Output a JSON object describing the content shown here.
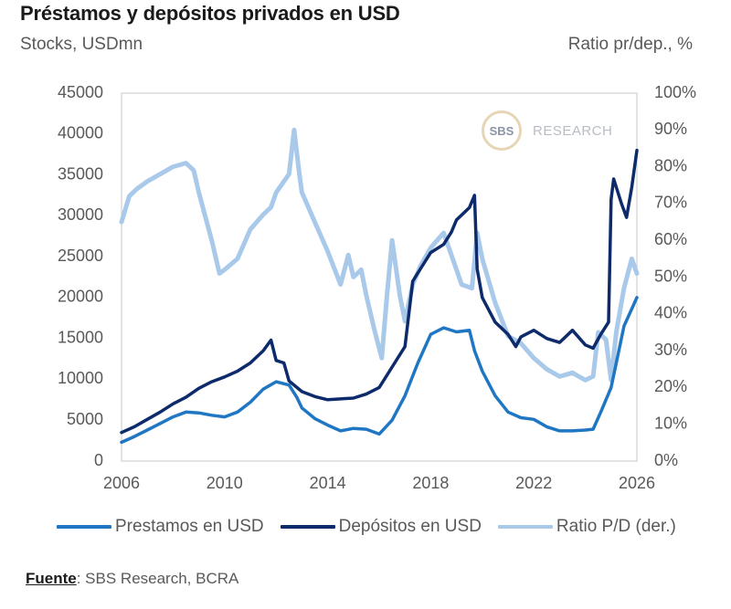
{
  "header": {
    "title": "Préstamos y depósitos privados en USD",
    "left_axis_caption": "Stocks, USDmn",
    "right_axis_caption": "Ratio pr/dep., %"
  },
  "watermark": {
    "mark": "SBS",
    "text": "RESEARCH"
  },
  "footer": {
    "source_label": "Fuente",
    "source_text": ": SBS Research, BCRA"
  },
  "legend": [
    {
      "label": "Prestamos en USD",
      "color": "#1f77c4"
    },
    {
      "label": "Depósitos en USD",
      "color": "#0d2a6b"
    },
    {
      "label": "Ratio P/D (der.)",
      "color": "#a9c9ea"
    }
  ],
  "chart_data": {
    "type": "line",
    "title": "Préstamos y depósitos privados en USD",
    "ylabel": "Stocks, USDmn",
    "y2label": "Ratio pr/dep., %",
    "xlim": [
      2006,
      2026
    ],
    "ylim": [
      0,
      45000
    ],
    "y2lim": [
      0,
      100
    ],
    "x_ticks": [
      "2006",
      "2010",
      "2014",
      "2018",
      "2022",
      "2026"
    ],
    "y_ticks": [
      "0",
      "5000",
      "10000",
      "15000",
      "20000",
      "25000",
      "30000",
      "35000",
      "40000",
      "45000"
    ],
    "y2_ticks": [
      "0%",
      "10%",
      "20%",
      "30%",
      "40%",
      "50%",
      "60%",
      "70%",
      "80%",
      "90%",
      "100%"
    ],
    "grid": false,
    "legend_position": "bottom",
    "series": [
      {
        "name": "Prestamos en USD",
        "axis": "left",
        "color": "#1f77c4",
        "points": [
          [
            2006.0,
            2300
          ],
          [
            2006.5,
            3000
          ],
          [
            2007.0,
            3800
          ],
          [
            2007.5,
            4600
          ],
          [
            2008.0,
            5400
          ],
          [
            2008.5,
            6000
          ],
          [
            2009.0,
            5900
          ],
          [
            2009.5,
            5600
          ],
          [
            2010.0,
            5400
          ],
          [
            2010.5,
            6000
          ],
          [
            2011.0,
            7200
          ],
          [
            2011.5,
            8800
          ],
          [
            2012.0,
            9700
          ],
          [
            2012.5,
            9300
          ],
          [
            2012.8,
            7800
          ],
          [
            2013.0,
            6500
          ],
          [
            2013.5,
            5200
          ],
          [
            2014.0,
            4400
          ],
          [
            2014.5,
            3700
          ],
          [
            2015.0,
            4000
          ],
          [
            2015.5,
            3900
          ],
          [
            2016.0,
            3300
          ],
          [
            2016.5,
            5000
          ],
          [
            2017.0,
            8000
          ],
          [
            2017.5,
            12000
          ],
          [
            2018.0,
            15500
          ],
          [
            2018.5,
            16300
          ],
          [
            2019.0,
            15800
          ],
          [
            2019.5,
            16000
          ],
          [
            2019.7,
            13500
          ],
          [
            2020.0,
            11000
          ],
          [
            2020.5,
            8000
          ],
          [
            2021.0,
            6000
          ],
          [
            2021.5,
            5300
          ],
          [
            2022.0,
            5100
          ],
          [
            2022.5,
            4200
          ],
          [
            2023.0,
            3700
          ],
          [
            2023.5,
            3700
          ],
          [
            2024.0,
            3800
          ],
          [
            2024.3,
            3900
          ],
          [
            2024.6,
            6000
          ],
          [
            2025.0,
            9000
          ],
          [
            2025.5,
            16500
          ],
          [
            2026.0,
            20000
          ]
        ]
      },
      {
        "name": "Depósitos en USD",
        "axis": "left",
        "color": "#0d2a6b",
        "points": [
          [
            2006.0,
            3500
          ],
          [
            2006.5,
            4200
          ],
          [
            2007.0,
            5100
          ],
          [
            2007.5,
            6000
          ],
          [
            2008.0,
            7000
          ],
          [
            2008.5,
            7800
          ],
          [
            2009.0,
            8900
          ],
          [
            2009.5,
            9700
          ],
          [
            2010.0,
            10300
          ],
          [
            2010.5,
            11000
          ],
          [
            2011.0,
            12000
          ],
          [
            2011.5,
            13500
          ],
          [
            2011.8,
            14800
          ],
          [
            2012.0,
            12300
          ],
          [
            2012.3,
            12000
          ],
          [
            2012.5,
            9800
          ],
          [
            2013.0,
            8500
          ],
          [
            2013.5,
            7900
          ],
          [
            2014.0,
            7500
          ],
          [
            2014.5,
            7600
          ],
          [
            2015.0,
            7700
          ],
          [
            2015.5,
            8200
          ],
          [
            2016.0,
            9000
          ],
          [
            2016.5,
            11500
          ],
          [
            2017.0,
            14000
          ],
          [
            2017.3,
            22000
          ],
          [
            2017.6,
            23500
          ],
          [
            2018.0,
            25500
          ],
          [
            2018.5,
            26500
          ],
          [
            2018.8,
            28000
          ],
          [
            2019.0,
            29500
          ],
          [
            2019.5,
            31000
          ],
          [
            2019.7,
            32500
          ],
          [
            2019.8,
            23500
          ],
          [
            2020.0,
            20000
          ],
          [
            2020.5,
            17000
          ],
          [
            2021.0,
            15500
          ],
          [
            2021.3,
            14000
          ],
          [
            2021.5,
            15200
          ],
          [
            2022.0,
            16000
          ],
          [
            2022.5,
            15000
          ],
          [
            2023.0,
            14500
          ],
          [
            2023.5,
            16000
          ],
          [
            2024.0,
            14200
          ],
          [
            2024.3,
            13800
          ],
          [
            2024.6,
            15500
          ],
          [
            2024.9,
            17000
          ],
          [
            2025.0,
            32000
          ],
          [
            2025.1,
            34500
          ],
          [
            2025.4,
            31500
          ],
          [
            2025.6,
            29800
          ],
          [
            2025.8,
            33500
          ],
          [
            2026.0,
            38000
          ]
        ]
      },
      {
        "name": "Ratio P/D (der.)",
        "axis": "right",
        "color": "#a9c9ea",
        "points": [
          [
            2006.0,
            65
          ],
          [
            2006.3,
            72
          ],
          [
            2006.6,
            74
          ],
          [
            2007.0,
            76
          ],
          [
            2007.5,
            78
          ],
          [
            2008.0,
            80
          ],
          [
            2008.5,
            81
          ],
          [
            2008.8,
            79
          ],
          [
            2009.0,
            73
          ],
          [
            2009.5,
            60
          ],
          [
            2009.8,
            51
          ],
          [
            2010.0,
            52
          ],
          [
            2010.5,
            55
          ],
          [
            2011.0,
            63
          ],
          [
            2011.5,
            67
          ],
          [
            2011.8,
            69
          ],
          [
            2012.0,
            73
          ],
          [
            2012.5,
            78
          ],
          [
            2012.7,
            90
          ],
          [
            2012.9,
            78
          ],
          [
            2013.0,
            73
          ],
          [
            2013.5,
            65
          ],
          [
            2014.0,
            57
          ],
          [
            2014.5,
            48
          ],
          [
            2014.8,
            56
          ],
          [
            2015.0,
            50
          ],
          [
            2015.3,
            52
          ],
          [
            2015.5,
            45
          ],
          [
            2015.8,
            36
          ],
          [
            2016.1,
            28
          ],
          [
            2016.3,
            45
          ],
          [
            2016.5,
            60
          ],
          [
            2016.8,
            45
          ],
          [
            2017.0,
            38
          ],
          [
            2017.3,
            48
          ],
          [
            2017.6,
            53
          ],
          [
            2018.0,
            58
          ],
          [
            2018.5,
            62
          ],
          [
            2018.8,
            56
          ],
          [
            2019.2,
            48
          ],
          [
            2019.6,
            47
          ],
          [
            2019.8,
            62
          ],
          [
            2020.0,
            55
          ],
          [
            2020.5,
            43
          ],
          [
            2021.0,
            34
          ],
          [
            2021.5,
            32
          ],
          [
            2022.0,
            28
          ],
          [
            2022.5,
            25
          ],
          [
            2023.0,
            23
          ],
          [
            2023.5,
            24
          ],
          [
            2024.0,
            22
          ],
          [
            2024.3,
            23
          ],
          [
            2024.5,
            35
          ],
          [
            2024.8,
            33
          ],
          [
            2025.0,
            22
          ],
          [
            2025.2,
            35
          ],
          [
            2025.5,
            47
          ],
          [
            2025.8,
            55
          ],
          [
            2026.0,
            51
          ]
        ]
      }
    ]
  }
}
